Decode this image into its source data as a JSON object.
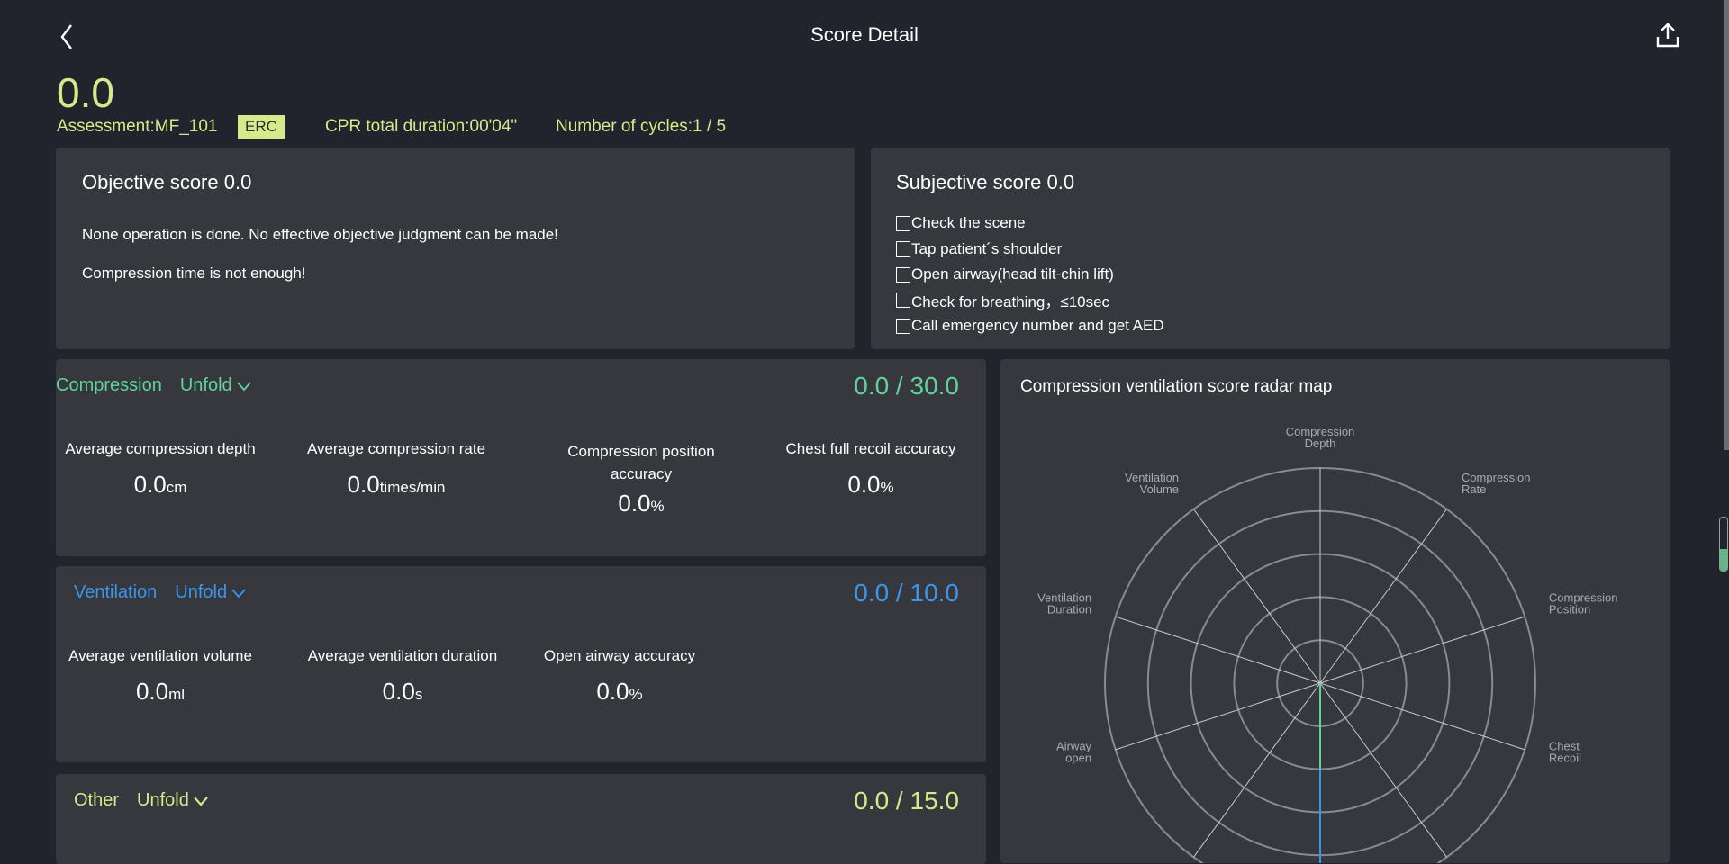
{
  "header": {
    "title": "Score Detail",
    "back_icon": "chevron-left-icon",
    "share_icon": "share-upload-icon"
  },
  "summary": {
    "total_score": "0.0",
    "assessment": "Assessment:MF_101",
    "badge": "ERC",
    "duration": "CPR total duration:00'04\"",
    "cycles": "Number of cycles:1 / 5"
  },
  "objective": {
    "title": "Objective score 0.0",
    "messages": [
      "None operation is done. No effective objective judgment can be made!",
      "Compression time is not enough!"
    ]
  },
  "subjective": {
    "title": "Subjective score 0.0",
    "items": [
      {
        "label": "Check the scene",
        "checked": false
      },
      {
        "label": "Tap patient´s shoulder",
        "checked": false
      },
      {
        "label": "Open airway(head tilt-chin lift)",
        "checked": false
      },
      {
        "label": "Check for breathing，≤10sec",
        "checked": false
      },
      {
        "label": "Call emergency number and get AED",
        "checked": false
      }
    ]
  },
  "sections": {
    "compression": {
      "name": "Compression",
      "unfold": "Unfold",
      "score": "0.0",
      "max": "30.0",
      "color": "#5fd39a",
      "metrics": [
        {
          "label": "Average compression depth",
          "value": "0.0",
          "unit": "cm"
        },
        {
          "label": "Average compression rate",
          "value": "0.0",
          "unit": "times/min"
        },
        {
          "label": "Compression position accuracy",
          "value": "0.0",
          "unit": "%"
        },
        {
          "label": "Chest full recoil accuracy",
          "value": "0.0",
          "unit": "%"
        }
      ]
    },
    "ventilation": {
      "name": "Ventilation",
      "unfold": "Unfold",
      "score": "0.0",
      "max": "10.0",
      "color": "#3a96ea",
      "metrics": [
        {
          "label": "Average ventilation volume",
          "value": "0.0",
          "unit": "ml"
        },
        {
          "label": "Average ventilation duration",
          "value": "0.0",
          "unit": "s"
        },
        {
          "label": "Open airway accuracy",
          "value": "0.0",
          "unit": "%"
        }
      ]
    },
    "other": {
      "name": "Other",
      "unfold": "Unfold",
      "score": "0.0",
      "max": "15.0",
      "color": "#d7e98a"
    }
  },
  "radar": {
    "title": "Compression ventilation score radar map",
    "chart_data": {
      "type": "radar",
      "indicators": [
        [
          "Compression",
          "Depth"
        ],
        [
          "Compression",
          "Rate"
        ],
        [
          "Compression",
          "Position"
        ],
        [
          "Chest",
          "Recoil"
        ],
        [],
        [],
        [],
        [
          "Airway",
          "open"
        ],
        [
          "Ventilation",
          "Duration"
        ],
        [
          "Ventilation",
          "Volume"
        ]
      ],
      "values": [
        0,
        0,
        0,
        0,
        0,
        0,
        0,
        0,
        0,
        0
      ],
      "rings": 5
    }
  },
  "side_gauge": {
    "fill": 0.4,
    "color": "#5fb883"
  }
}
